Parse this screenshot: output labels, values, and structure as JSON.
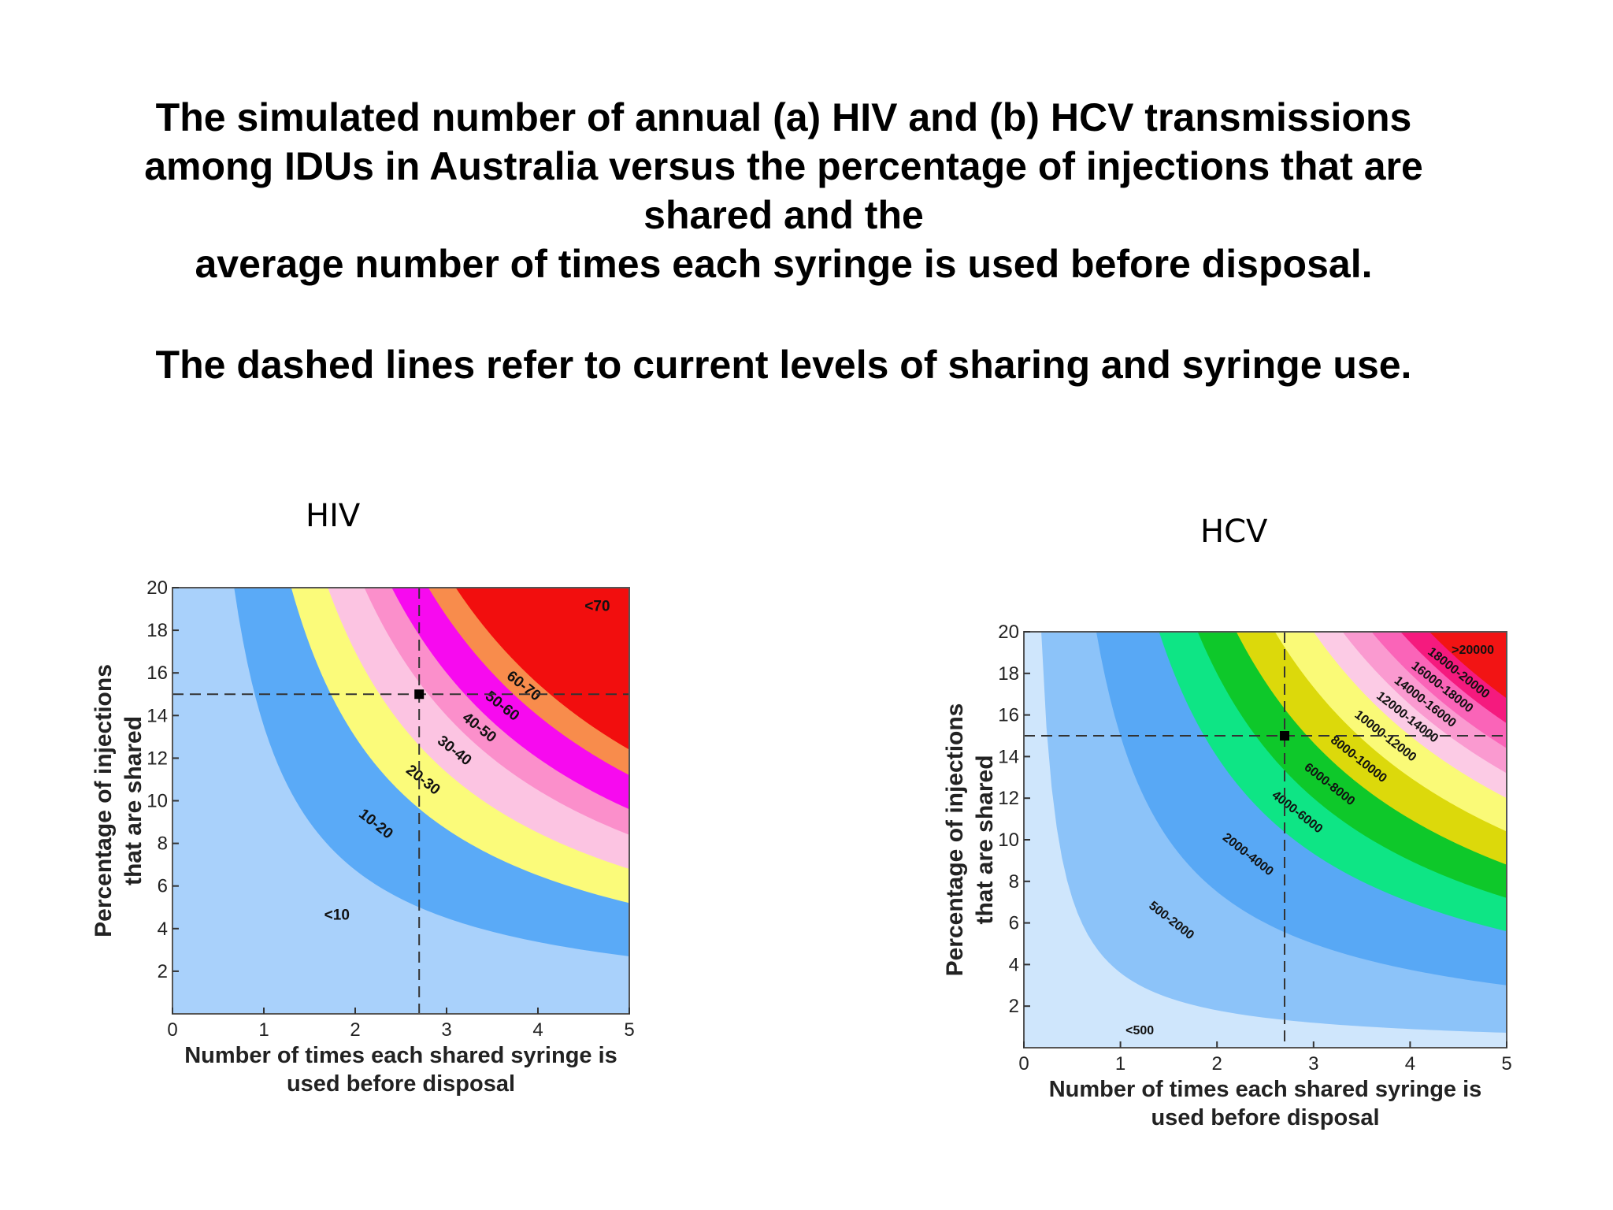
{
  "title_lines": [
    "The simulated number of annual (a) HIV and (b) HCV transmissions",
    "among IDUs in Australia versus the percentage of injections that are",
    "shared and the",
    "average number of times each syringe is used before disposal."
  ],
  "subtitle": "The dashed lines refer to current levels of sharing and syringe use.",
  "chart_data": [
    {
      "type": "contour",
      "panel_label": "HIV",
      "xlabel_lines": [
        "Number of times each shared syringe is",
        "used before disposal"
      ],
      "ylabel_lines": [
        "Percentage of injections",
        "that are shared"
      ],
      "xlim": [
        0,
        5
      ],
      "ylim": [
        0,
        20
      ],
      "xticks": [
        "0",
        "1",
        "2",
        "3",
        "4",
        "5"
      ],
      "yticks": [
        "2",
        "4",
        "6",
        "8",
        "10",
        "12",
        "14",
        "16",
        "18",
        "20"
      ],
      "current_level": {
        "x": 2.7,
        "y": 15
      },
      "bands": [
        {
          "label": "<10",
          "color": "#a9d1fb"
        },
        {
          "label": "10-20",
          "color": "#5aaaf7"
        },
        {
          "label": "20-30",
          "color": "#fbfb7a"
        },
        {
          "label": "30-40",
          "color": "#fcc4e2"
        },
        {
          "label": "40-50",
          "color": "#fb8fcb"
        },
        {
          "label": "50-60",
          "color": "#f70aef"
        },
        {
          "label": "60-70",
          "color": "#f88c4c"
        },
        {
          "label": "<70",
          "color": "#f20e0e"
        }
      ],
      "boundaries": [
        13.5,
        26,
        34,
        42,
        48,
        56,
        62
      ]
    },
    {
      "type": "contour",
      "panel_label": "HCV",
      "xlabel_lines": [
        "Number of times each shared syringe is",
        "used before disposal"
      ],
      "ylabel_lines": [
        "Percentage of injections",
        "that are shared"
      ],
      "xlim": [
        0,
        5
      ],
      "ylim": [
        0,
        20
      ],
      "xticks": [
        "0",
        "1",
        "2",
        "3",
        "4",
        "5"
      ],
      "yticks": [
        "2",
        "4",
        "6",
        "8",
        "10",
        "12",
        "14",
        "16",
        "18",
        "20"
      ],
      "current_level": {
        "x": 2.7,
        "y": 15
      },
      "bands": [
        {
          "label": "<500",
          "color": "#cfe6fc"
        },
        {
          "label": "500-2000",
          "color": "#8cc3f9"
        },
        {
          "label": "2000-4000",
          "color": "#58a8f5"
        },
        {
          "label": "4000-6000",
          "color": "#0ee585"
        },
        {
          "label": "6000-8000",
          "color": "#0ec82a"
        },
        {
          "label": "8000-10000",
          "color": "#dcd90b"
        },
        {
          "label": "10000-12000",
          "color": "#fafa77"
        },
        {
          "label": "12000-14000",
          "color": "#fccbe5"
        },
        {
          "label": "14000-16000",
          "color": "#fa9ad0"
        },
        {
          "label": "16000-18000",
          "color": "#fa64b8"
        },
        {
          "label": "18000-20000",
          "color": "#f51a7e"
        },
        {
          "label": ">20000",
          "color": "#f21414"
        }
      ],
      "boundaries": [
        3.6,
        15,
        28,
        36,
        44,
        52,
        60,
        66,
        72,
        78,
        84
      ]
    }
  ]
}
